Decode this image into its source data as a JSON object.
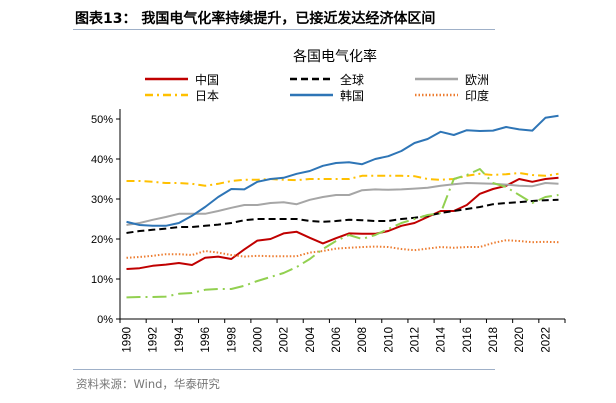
{
  "header": {
    "title": "图表13： 我国电气化率持续提升，已接近发达经济体区间"
  },
  "footer": {
    "source": "资料来源：Wind，华泰研究"
  },
  "chart_data": {
    "type": "line",
    "title": "各国电气化率",
    "xlabel": "",
    "ylabel": "",
    "ylim": [
      0,
      50
    ],
    "y_ticks": [
      "0%",
      "10%",
      "20%",
      "30%",
      "40%",
      "50%"
    ],
    "x": [
      1990,
      1991,
      1992,
      1993,
      1994,
      1995,
      1996,
      1997,
      1998,
      1999,
      2000,
      2001,
      2002,
      2003,
      2004,
      2005,
      2006,
      2007,
      2008,
      2009,
      2010,
      2011,
      2012,
      2013,
      2014,
      2015,
      2016,
      2017,
      2018,
      2019,
      2020,
      2021,
      2022,
      2023
    ],
    "x_tick_labels": [
      "1990",
      "1992",
      "1994",
      "1996",
      "1998",
      "2000",
      "2002",
      "2004",
      "2006",
      "2008",
      "2010",
      "2012",
      "2014",
      "2016",
      "2018",
      "2020",
      "2022"
    ],
    "legend_placement": "top",
    "grid": false,
    "series": [
      {
        "name": "中国",
        "color": "#c00000",
        "style": "solid",
        "values": [
          12.5,
          12.7,
          13.3,
          13.6,
          14.0,
          13.5,
          15.3,
          15.6,
          15.0,
          17.4,
          19.6,
          20.0,
          21.4,
          21.8,
          20.3,
          18.9,
          20.2,
          21.4,
          21.3,
          21.3,
          22.0,
          23.3,
          24.0,
          25.5,
          27.0,
          27.0,
          28.5,
          31.3,
          32.5,
          33.3,
          35.0,
          34.3,
          35.0,
          35.3
        ]
      },
      {
        "name": "全球",
        "color": "#000000",
        "style": "dashed",
        "values": [
          21.5,
          22.0,
          22.3,
          22.6,
          23.0,
          23.0,
          23.3,
          23.6,
          24.0,
          24.7,
          25.0,
          25.0,
          25.0,
          25.0,
          24.5,
          24.3,
          24.5,
          24.8,
          24.7,
          24.5,
          24.5,
          25.0,
          25.3,
          25.8,
          26.5,
          27.0,
          27.5,
          28.0,
          28.7,
          29.0,
          29.2,
          29.5,
          29.7,
          29.8
        ]
      },
      {
        "name": "欧洲",
        "color": "#a6a6a6",
        "style": "solid",
        "values": [
          23.5,
          24.0,
          24.8,
          25.5,
          26.3,
          26.3,
          26.3,
          27.0,
          27.8,
          28.5,
          28.5,
          29.0,
          29.2,
          28.7,
          29.8,
          30.5,
          31.0,
          31.0,
          32.2,
          32.4,
          32.3,
          32.4,
          32.6,
          32.8,
          33.3,
          33.7,
          34.0,
          33.9,
          33.8,
          33.6,
          33.3,
          33.2,
          34.0,
          33.8
        ]
      },
      {
        "name": "日本",
        "color": "#ffc000",
        "style": "dashdot",
        "values": [
          34.5,
          34.5,
          34.3,
          34.0,
          34.0,
          33.8,
          33.3,
          33.8,
          34.5,
          34.8,
          34.8,
          35.0,
          34.8,
          34.7,
          35.0,
          35.0,
          35.0,
          35.0,
          35.8,
          35.8,
          35.8,
          35.8,
          35.7,
          35.0,
          34.8,
          35.0,
          35.8,
          36.3,
          36.0,
          36.2,
          36.5,
          36.0,
          35.8,
          36.3
        ]
      },
      {
        "name": "韩国",
        "color": "#2e75b6",
        "style": "solid",
        "values": [
          24.3,
          23.5,
          23.3,
          23.3,
          24.0,
          25.8,
          28.0,
          30.5,
          32.5,
          32.4,
          34.3,
          35.0,
          35.3,
          36.3,
          37.0,
          38.3,
          39.0,
          39.2,
          38.7,
          40.0,
          40.7,
          42.0,
          44.0,
          45.0,
          46.8,
          46.0,
          47.2,
          47.0,
          47.1,
          48.0,
          47.4,
          47.1,
          50.3,
          50.8
        ]
      },
      {
        "name": "印度",
        "color": "#ed7d31",
        "style": "dotted",
        "values": [
          15.3,
          15.5,
          15.8,
          16.2,
          16.2,
          16.0,
          17.0,
          16.6,
          16.0,
          15.6,
          15.8,
          15.7,
          15.7,
          15.7,
          16.6,
          17.0,
          17.6,
          17.8,
          18.0,
          18.1,
          18.0,
          17.5,
          17.2,
          17.6,
          18.0,
          17.8,
          18.0,
          18.0,
          19.0,
          19.7,
          19.5,
          19.2,
          19.3,
          19.2
        ]
      },
      {
        "color": "#92d050",
        "style": "longdashdot",
        "values": [
          5.4,
          5.5,
          5.5,
          5.6,
          6.3,
          6.5,
          7.3,
          7.5,
          7.5,
          8.3,
          9.5,
          10.5,
          11.5,
          13.0,
          15.0,
          17.5,
          19.5,
          21.0,
          20.0,
          21.0,
          22.5,
          24.0,
          25.0,
          26.0,
          26.5,
          35.0,
          36.0,
          37.5,
          34.0,
          33.0,
          31.0,
          29.0,
          30.5,
          31.0
        ]
      }
    ]
  }
}
